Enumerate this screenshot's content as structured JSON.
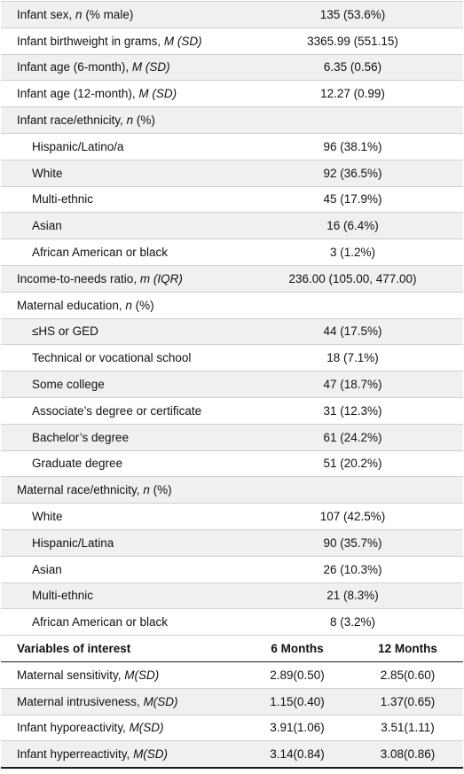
{
  "demographics": [
    {
      "label": "Infant sex, ",
      "stat": "n",
      "suffix": " (% male)",
      "value": "135 (53.6%)",
      "indent": false,
      "shade": true
    },
    {
      "label": "Infant birthweight in grams, ",
      "stat": "M (SD)",
      "suffix": "",
      "value": "3365.99 (551.15)",
      "indent": false,
      "shade": false
    },
    {
      "label": "Infant age (6-month), ",
      "stat": "M (SD)",
      "suffix": "",
      "value": "6.35 (0.56)",
      "indent": false,
      "shade": true
    },
    {
      "label": "Infant age (12-month), ",
      "stat": "M (SD)",
      "suffix": "",
      "value": "12.27 (0.99)",
      "indent": false,
      "shade": false
    },
    {
      "label": "Infant race/ethnicity, ",
      "stat": "n",
      "suffix": " (%)",
      "value": "",
      "indent": false,
      "shade": true
    },
    {
      "label": "Hispanic/Latino/a",
      "stat": "",
      "suffix": "",
      "value": "96 (38.1%)",
      "indent": true,
      "shade": false
    },
    {
      "label": "White",
      "stat": "",
      "suffix": "",
      "value": "92 (36.5%)",
      "indent": true,
      "shade": true
    },
    {
      "label": "Multi-ethnic",
      "stat": "",
      "suffix": "",
      "value": "45 (17.9%)",
      "indent": true,
      "shade": false
    },
    {
      "label": "Asian",
      "stat": "",
      "suffix": "",
      "value": "16 (6.4%)",
      "indent": true,
      "shade": true
    },
    {
      "label": "African American or black",
      "stat": "",
      "suffix": "",
      "value": "3 (1.2%)",
      "indent": true,
      "shade": false
    },
    {
      "label": "Income-to-needs ratio, ",
      "stat": "m (IQR)",
      "suffix": "",
      "value": "236.00 (105.00, 477.00)",
      "indent": false,
      "shade": true
    },
    {
      "label": "Maternal education, ",
      "stat": "n",
      "suffix": " (%)",
      "value": "",
      "indent": false,
      "shade": false
    },
    {
      "label": "≤HS or GED",
      "stat": "",
      "suffix": "",
      "value": "44 (17.5%)",
      "indent": true,
      "shade": true
    },
    {
      "label": "Technical or vocational school",
      "stat": "",
      "suffix": "",
      "value": "18 (7.1%)",
      "indent": true,
      "shade": false
    },
    {
      "label": "Some college",
      "stat": "",
      "suffix": "",
      "value": "47 (18.7%)",
      "indent": true,
      "shade": true
    },
    {
      "label": "Associate’s degree or certificate",
      "stat": "",
      "suffix": "",
      "value": "31 (12.3%)",
      "indent": true,
      "shade": false
    },
    {
      "label": "Bachelor’s degree",
      "stat": "",
      "suffix": "",
      "value": "61 (24.2%)",
      "indent": true,
      "shade": true
    },
    {
      "label": "Graduate degree",
      "stat": "",
      "suffix": "",
      "value": "51 (20.2%)",
      "indent": true,
      "shade": false
    },
    {
      "label": "Maternal race/ethnicity, ",
      "stat": "n",
      "suffix": " (%)",
      "value": "",
      "indent": false,
      "shade": true
    },
    {
      "label": "White",
      "stat": "",
      "suffix": "",
      "value": "107 (42.5%)",
      "indent": true,
      "shade": false
    },
    {
      "label": "Hispanic/Latina",
      "stat": "",
      "suffix": "",
      "value": "90 (35.7%)",
      "indent": true,
      "shade": true
    },
    {
      "label": "Asian",
      "stat": "",
      "suffix": "",
      "value": "26 (10.3%)",
      "indent": true,
      "shade": false
    },
    {
      "label": "Multi-ethnic",
      "stat": "",
      "suffix": "",
      "value": "21 (8.3%)",
      "indent": true,
      "shade": true
    },
    {
      "label": "African American or black",
      "stat": "",
      "suffix": "",
      "value": "8 (3.2%)",
      "indent": true,
      "shade": false
    }
  ],
  "interest_header": {
    "label": "Variables of interest",
    "col1": "6 Months",
    "col2": "12 Months"
  },
  "interest": [
    {
      "label": "Maternal sensitivity, ",
      "stat": "M(SD)",
      "v6": "2.89(0.50)",
      "v12": "2.85(0.60)",
      "shade": false
    },
    {
      "label": "Maternal intrusiveness, ",
      "stat": "M(SD)",
      "v6": "1.15(0.40)",
      "v12": "1.37(0.65)",
      "shade": true
    },
    {
      "label": "Infant hyporeactivity, ",
      "stat": "M(SD)",
      "v6": "3.91(1.06)",
      "v12": "3.51(1.11)",
      "shade": false
    },
    {
      "label": "Infant hyperreactivity, ",
      "stat": "M(SD)",
      "v6": "3.14(0.84)",
      "v12": "3.08(0.86)",
      "shade": true
    }
  ]
}
